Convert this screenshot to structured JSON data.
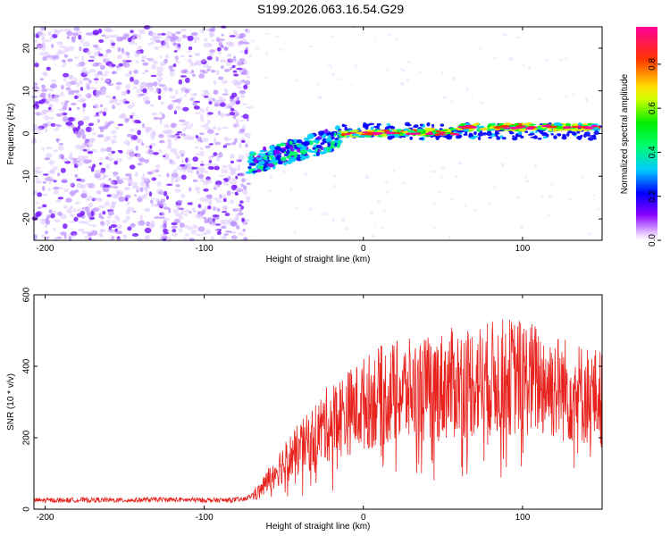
{
  "chart_data": [
    {
      "type": "heatmap",
      "title": "S199.2026.063.16.54.G29",
      "xlabel": "Height of straight line (km)",
      "ylabel": "Frequency (Hz)",
      "xlim": [
        -207,
        150
      ],
      "ylim": [
        -25,
        25
      ],
      "xticks": [
        -200,
        -100,
        0,
        100
      ],
      "yticks": [
        20,
        10,
        0,
        -10,
        -20
      ],
      "colorbar": {
        "label": "Normalized spectral amplitude",
        "range": [
          0,
          0.97
        ],
        "ticks": [
          "0.0",
          "0.2",
          "0.4",
          "0.6",
          "0.8"
        ]
      },
      "regions": [
        {
          "name": "noise",
          "x_range": [
            -207,
            -72
          ],
          "freq_range": [
            -25,
            25
          ],
          "amplitude": "low (0.0-0.1)"
        },
        {
          "name": "transition",
          "x_range": [
            -72,
            -15
          ],
          "freq_center_start": -7,
          "freq_center_end": -1,
          "amplitude": "0.1-0.3"
        },
        {
          "name": "signal",
          "x_range": [
            -15,
            150
          ],
          "freq_center": [
            0,
            1.5
          ],
          "amplitude": "0.4-0.97"
        }
      ]
    },
    {
      "type": "line",
      "xlabel": "Height of straight line (km)",
      "ylabel": "SNR (10 * v/v)",
      "xlim": [
        -207,
        150
      ],
      "ylim": [
        0,
        600
      ],
      "xticks": [
        -200,
        -100,
        0,
        100
      ],
      "yticks": [
        0,
        200,
        400,
        600
      ],
      "series": [
        {
          "name": "SNR",
          "color": "#e8231e",
          "x": [
            -207,
            -190,
            -170,
            -150,
            -130,
            -110,
            -90,
            -75,
            -65,
            -55,
            -45,
            -35,
            -25,
            -15,
            -5,
            0,
            10,
            20,
            30,
            40,
            50,
            60,
            70,
            80,
            90,
            100,
            110,
            120,
            130,
            140,
            150
          ],
          "y": [
            25,
            25,
            26,
            25,
            27,
            26,
            25,
            27,
            50,
            110,
            150,
            185,
            230,
            260,
            280,
            295,
            315,
            325,
            330,
            335,
            345,
            355,
            360,
            365,
            370,
            370,
            360,
            345,
            330,
            320,
            310
          ]
        }
      ]
    }
  ]
}
